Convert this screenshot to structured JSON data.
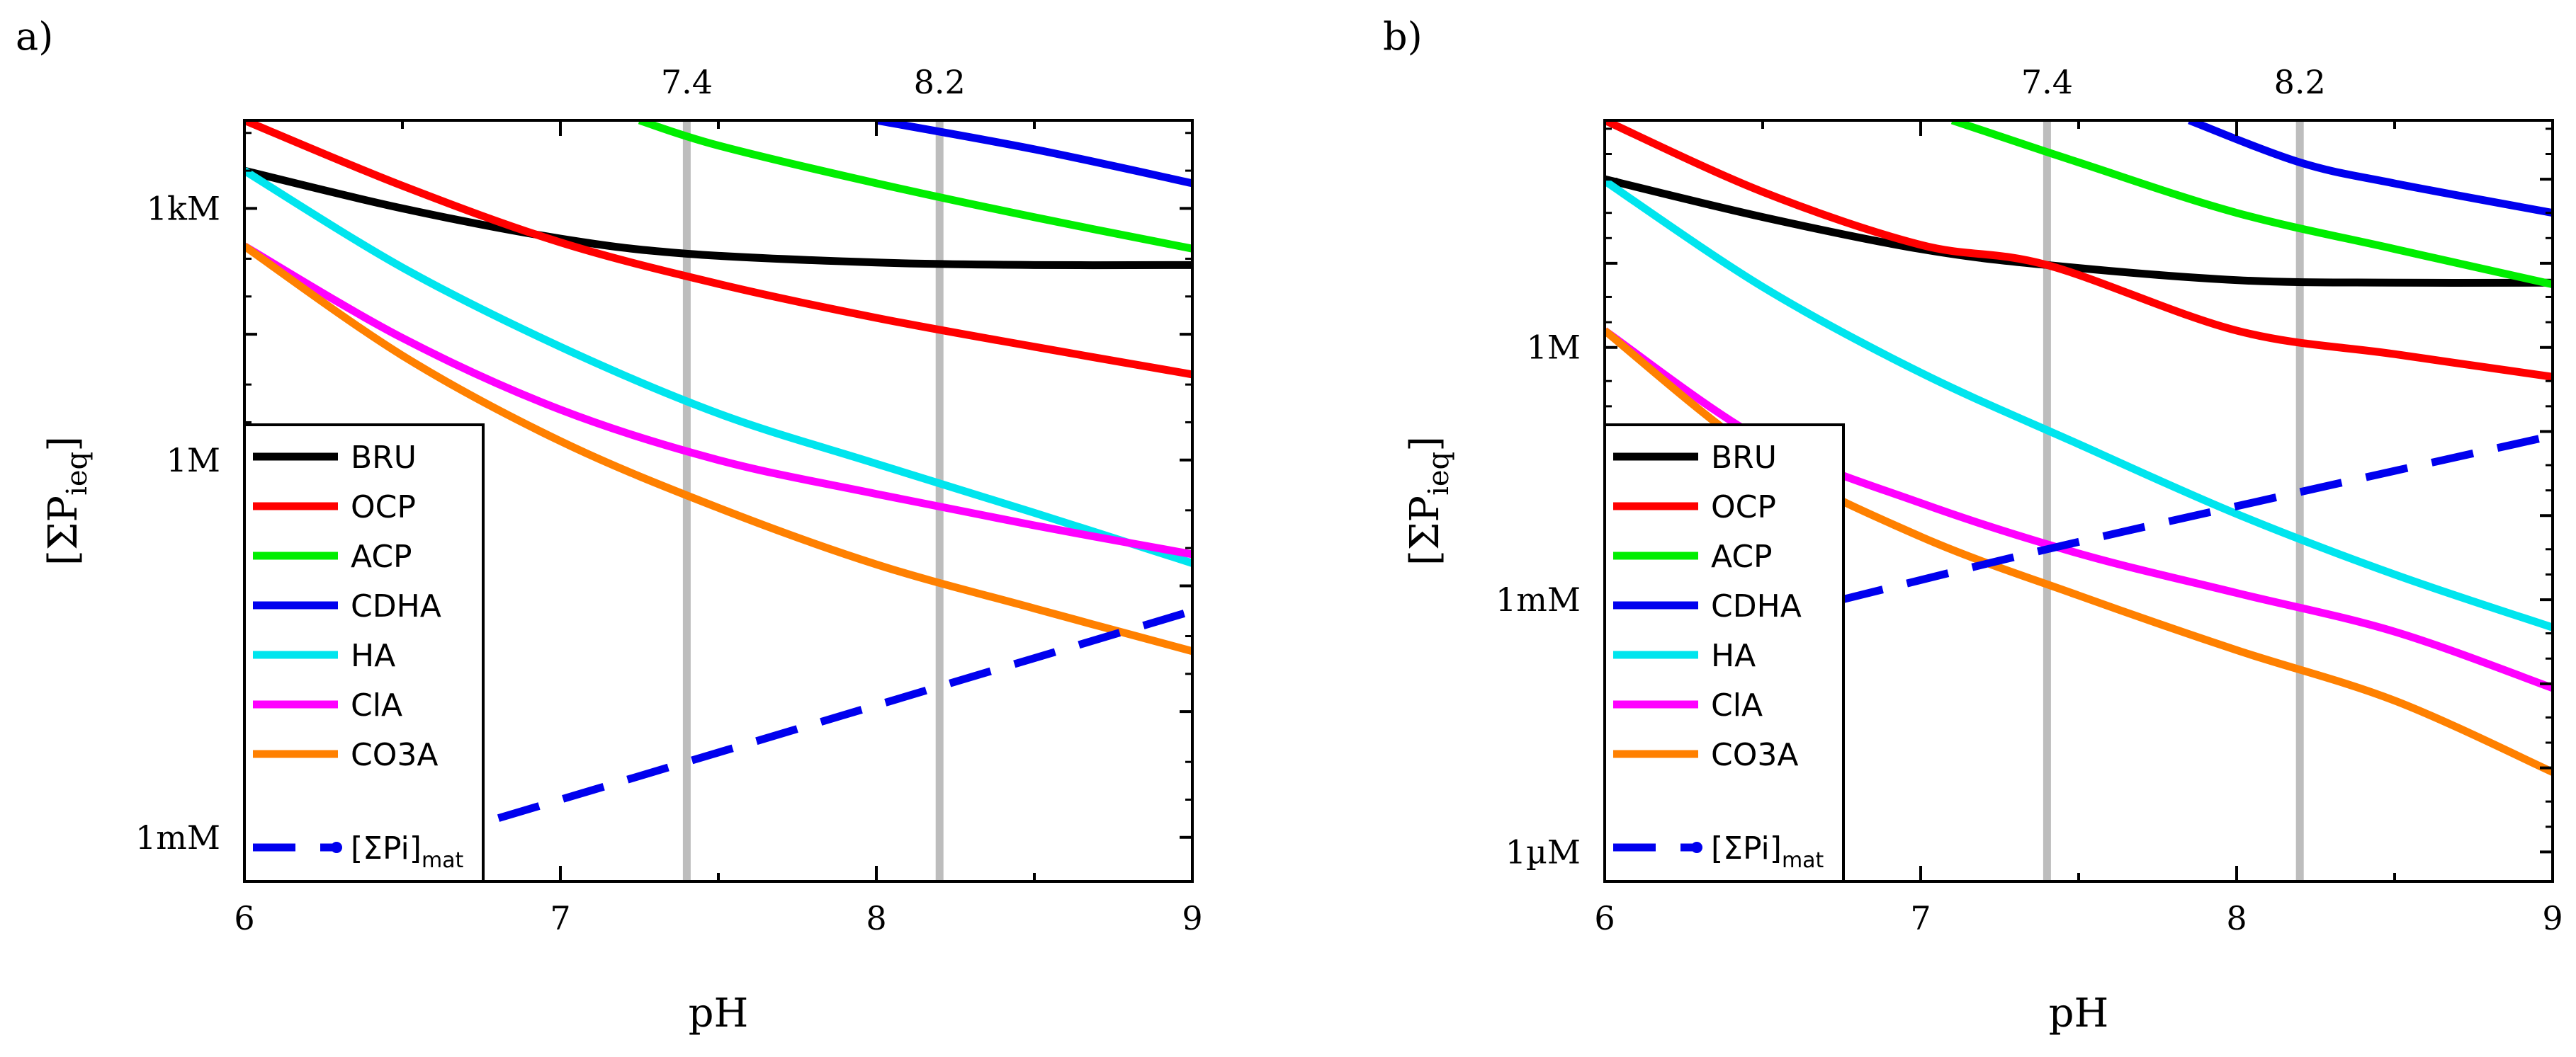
{
  "chart_data": [
    {
      "type": "line",
      "panel_label": "a)",
      "xlabel": "pH",
      "ylabel": "[ΣP",
      "ylabel_sub": "i",
      "ylabel_sub2": "eq",
      "ylabel_close": "]",
      "xlim": [
        6,
        9
      ],
      "ylim_log10": [
        -3.35,
        2.7
      ],
      "y_scale": "log",
      "x_ticks": [
        6,
        7,
        8,
        9
      ],
      "y_ticks": [
        {
          "log10": -3,
          "label": "1mM"
        },
        {
          "log10": 0,
          "label": "1M"
        },
        {
          "log10": 2,
          "label": "1kM"
        }
      ],
      "ref_lines": [
        {
          "x": 7.4,
          "label": "7.4"
        },
        {
          "x": 8.2,
          "label": "8.2"
        }
      ],
      "series": [
        {
          "name": "BRU",
          "color": "#000000",
          "dash": false,
          "x": [
            6,
            6.5,
            7,
            7.4,
            8,
            8.5,
            9
          ],
          "y_log10": [
            2.3,
            2.0,
            1.76,
            1.64,
            1.57,
            1.55,
            1.55
          ]
        },
        {
          "name": "OCP",
          "color": "#ff0000",
          "dash": false,
          "x": [
            6,
            6.5,
            7,
            7.5,
            8,
            8.5,
            9
          ],
          "y_log10": [
            2.7,
            2.18,
            1.73,
            1.4,
            1.13,
            0.9,
            0.68
          ]
        },
        {
          "name": "ACP",
          "color": "#00ee00",
          "dash": false,
          "x": [
            7.25,
            7.5,
            8,
            8.5,
            9
          ],
          "y_log10": [
            2.7,
            2.5,
            2.2,
            1.93,
            1.68
          ]
        },
        {
          "name": "CDHA",
          "color": "#0000ee",
          "dash": false,
          "x": [
            8.0,
            8.5,
            9
          ],
          "y_log10": [
            2.7,
            2.47,
            2.2
          ]
        },
        {
          "name": "HA",
          "color": "#00e5ee",
          "dash": false,
          "x": [
            6,
            6.5,
            7,
            7.5,
            8,
            8.5,
            9
          ],
          "y_log10": [
            2.3,
            1.53,
            0.9,
            0.37,
            -0.03,
            -0.42,
            -0.82
          ]
        },
        {
          "name": "ClA",
          "color": "#ff00ff",
          "dash": false,
          "x": [
            6,
            6.5,
            7,
            7.5,
            8,
            8.5,
            9
          ],
          "y_log10": [
            1.7,
            0.97,
            0.4,
            0.0,
            -0.27,
            -0.52,
            -0.75
          ]
        },
        {
          "name": "CO3A",
          "color": "#ff8000",
          "dash": false,
          "x": [
            6,
            6.5,
            7,
            7.5,
            8,
            8.5,
            9
          ],
          "y_log10": [
            1.7,
            0.83,
            0.15,
            -0.38,
            -0.83,
            -1.18,
            -1.52
          ]
        },
        {
          "name": "[ΣPi]",
          "name_sub": "mat",
          "color": "#0000ee",
          "dash": true,
          "x": [
            6.6,
            7.4,
            8.2,
            9
          ],
          "y_log10": [
            -3.0,
            -2.4,
            -1.8,
            -1.2
          ]
        }
      ]
    },
    {
      "type": "line",
      "panel_label": "b)",
      "xlabel": "pH",
      "ylabel": "[ΣP",
      "ylabel_sub": "i",
      "ylabel_sub2": "eq",
      "ylabel_close": "]",
      "xlim": [
        6,
        9
      ],
      "ylim_log10": [
        -6.35,
        2.7
      ],
      "y_scale": "log",
      "x_ticks": [
        6,
        7,
        8,
        9
      ],
      "y_ticks": [
        {
          "log10": -6,
          "label": "1µM"
        },
        {
          "log10": -3,
          "label": "1mM"
        },
        {
          "log10": 0,
          "label": "1M"
        }
      ],
      "ref_lines": [
        {
          "x": 7.4,
          "label": "7.4"
        },
        {
          "x": 8.2,
          "label": "8.2"
        }
      ],
      "series": [
        {
          "name": "BRU",
          "color": "#000000",
          "dash": false,
          "x": [
            6,
            6.5,
            7,
            7.4,
            8,
            8.5,
            9
          ],
          "y_log10": [
            2.0,
            1.55,
            1.17,
            0.98,
            0.8,
            0.77,
            0.77
          ]
        },
        {
          "name": "OCP",
          "color": "#ff0000",
          "dash": false,
          "x": [
            6,
            6.5,
            7,
            7.4,
            8,
            8.5,
            9
          ],
          "y_log10": [
            2.7,
            1.85,
            1.22,
            0.98,
            0.2,
            -0.08,
            -0.35
          ]
        },
        {
          "name": "ACP",
          "color": "#00ee00",
          "dash": false,
          "x": [
            7.1,
            7.5,
            8,
            8.5,
            9
          ],
          "y_log10": [
            2.7,
            2.2,
            1.6,
            1.17,
            0.75
          ]
        },
        {
          "name": "CDHA",
          "color": "#0000ee",
          "dash": false,
          "x": [
            7.85,
            8.2,
            8.5,
            9
          ],
          "y_log10": [
            2.7,
            2.2,
            1.95,
            1.6
          ]
        },
        {
          "name": "HA",
          "color": "#00e5ee",
          "dash": false,
          "x": [
            6,
            6.5,
            7,
            7.5,
            8,
            8.5,
            9
          ],
          "y_log10": [
            1.98,
            0.72,
            -0.3,
            -1.15,
            -1.98,
            -2.7,
            -3.33
          ]
        },
        {
          "name": "ClA",
          "color": "#ff00ff",
          "dash": false,
          "x": [
            6,
            6.5,
            7,
            7.5,
            8,
            8.5,
            9
          ],
          "y_log10": [
            0.2,
            -1.1,
            -1.85,
            -2.45,
            -2.92,
            -3.38,
            -4.05
          ]
        },
        {
          "name": "CO3A",
          "color": "#ff8000",
          "dash": false,
          "x": [
            6,
            6.5,
            7,
            7.5,
            8,
            8.5,
            9
          ],
          "y_log10": [
            0.2,
            -1.3,
            -2.25,
            -2.95,
            -3.6,
            -4.2,
            -5.05
          ]
        },
        {
          "name": "[ΣPi]",
          "name_sub": "mat",
          "color": "#0000ee",
          "dash": true,
          "x": [
            6.75,
            7.4,
            8.2,
            9
          ],
          "y_log10": [
            -3.0,
            -2.4,
            -1.72,
            -1.05
          ]
        }
      ]
    }
  ]
}
